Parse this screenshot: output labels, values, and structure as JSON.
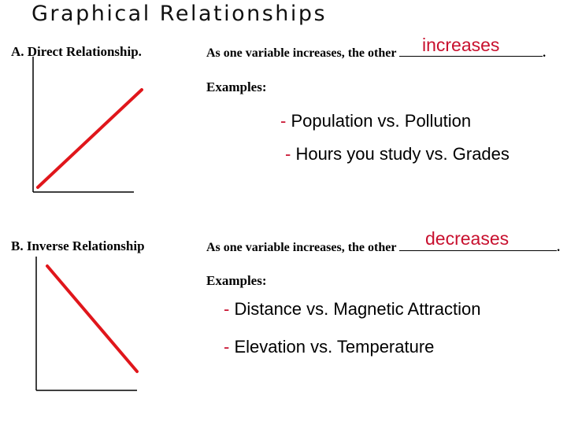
{
  "title": "Graphical Relationships",
  "section_a": {
    "label": "A.  Direct Relationship.",
    "statement": "As one variable increases, the other",
    "answer": "increases",
    "end_mark": ".",
    "examples_label": "Examples:",
    "examples": [
      {
        "dash": "- ",
        "text": "Population vs. Pollution"
      },
      {
        "dash": "- ",
        "text": "Hours you study vs. Grades"
      }
    ]
  },
  "section_b": {
    "label": "B.  Inverse Relationship",
    "statement": "As one variable increases, the other",
    "answer": "decreases",
    "end_mark": ".",
    "examples_label": "Examples:",
    "examples": [
      {
        "dash": "- ",
        "text": "Distance vs. Magnetic Attraction"
      },
      {
        "dash": "- ",
        "text": "Elevation vs. Temperature"
      }
    ]
  },
  "colors": {
    "line": "#e0161b",
    "answer": "#c8102e",
    "axes": "#000000"
  }
}
